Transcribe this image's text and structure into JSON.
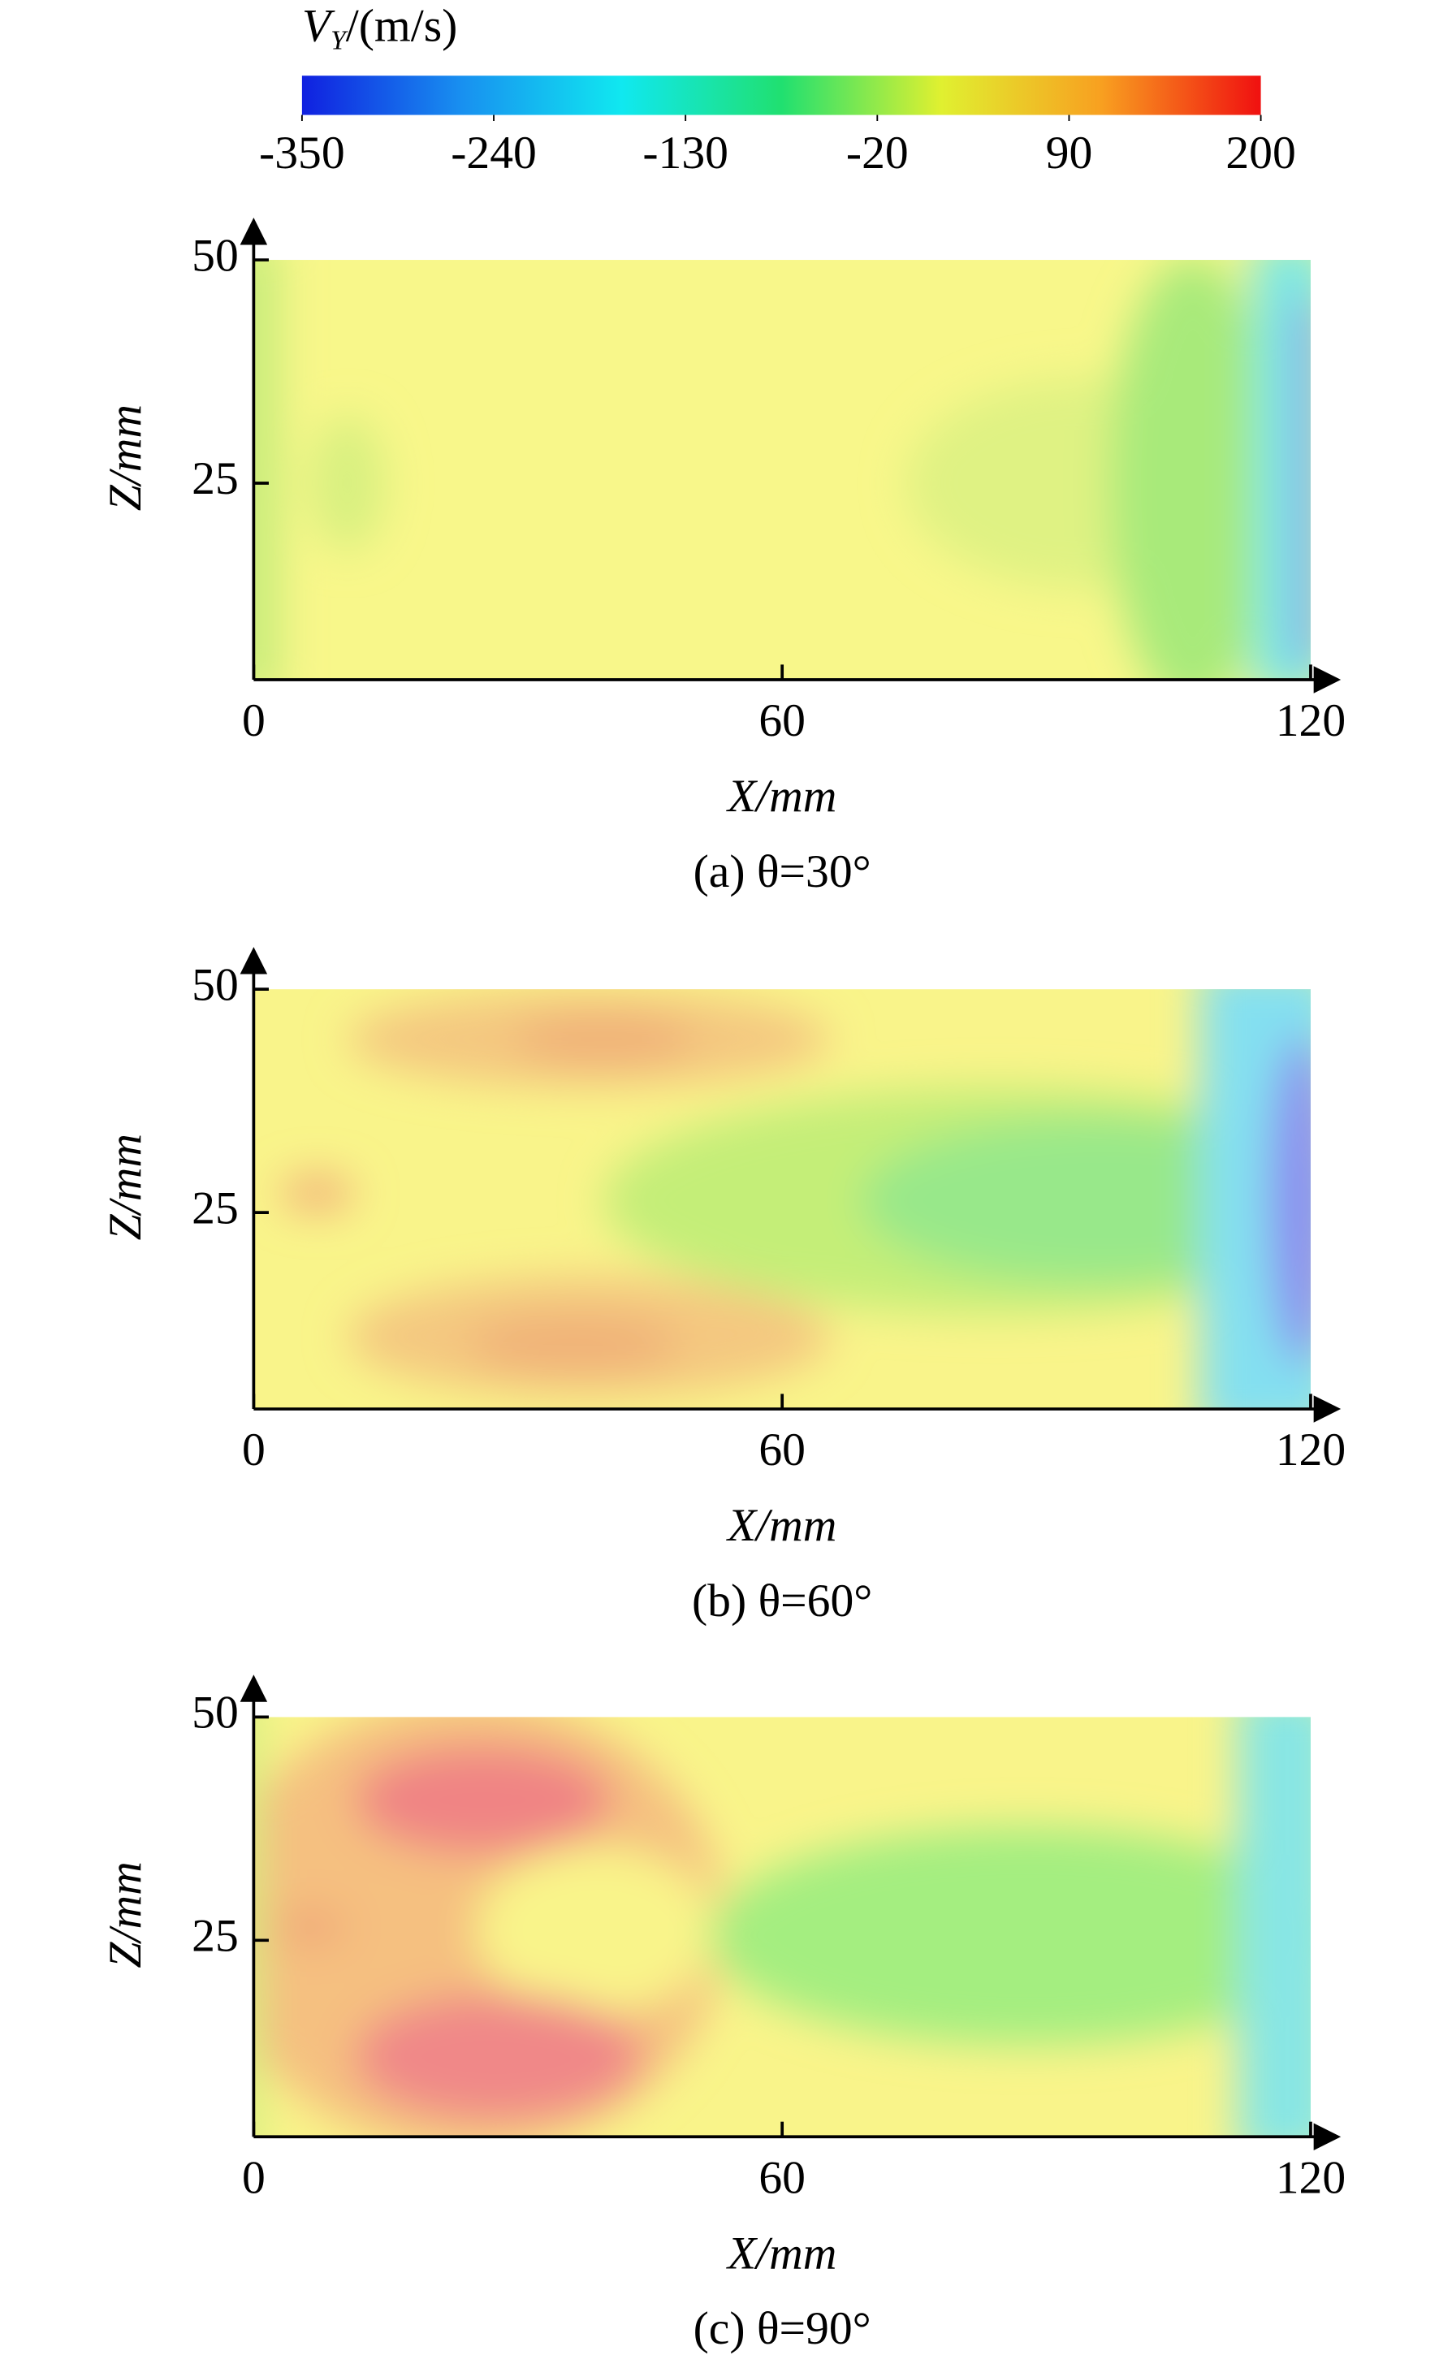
{
  "colorbar": {
    "label": {
      "symbol": "V",
      "subscript": "Y",
      "unit": "/(m/s)"
    },
    "lim": [
      -350,
      200
    ],
    "ticks": [
      -350,
      -240,
      -130,
      -20,
      90,
      200
    ],
    "colors": [
      "#1020e0",
      "#1890f0",
      "#10e8f0",
      "#20e070",
      "#e0f030",
      "#f8a020",
      "#f01010"
    ]
  },
  "chart_data": [
    {
      "type": "contour",
      "title": "(a) θ=30°",
      "xlabel": "X/mm",
      "ylabel": "Z/mm",
      "xlim": [
        0,
        120
      ],
      "ylim": [
        3,
        50
      ],
      "xticks": [
        0,
        60,
        120
      ],
      "yticks": [
        25,
        50
      ]
    },
    {
      "type": "contour",
      "title": "(b) θ=60°",
      "xlabel": "X/mm",
      "ylabel": "Z/mm",
      "xlim": [
        0,
        120
      ],
      "ylim": [
        3,
        50
      ],
      "xticks": [
        0,
        60,
        120
      ],
      "yticks": [
        25,
        50
      ]
    },
    {
      "type": "contour",
      "title": "(c) θ=90°",
      "xlabel": "X/mm",
      "ylabel": "Z/mm",
      "xlim": [
        0,
        120
      ],
      "ylim": [
        3,
        50
      ],
      "xticks": [
        0,
        60,
        120
      ],
      "yticks": [
        25,
        50
      ]
    }
  ]
}
